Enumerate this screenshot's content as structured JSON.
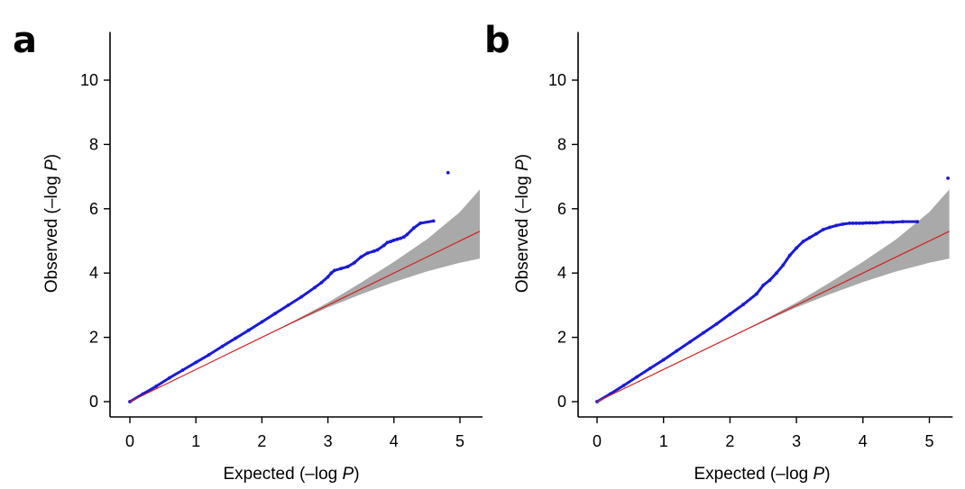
{
  "chart_data": [
    {
      "type": "scatter",
      "panel_label": "a",
      "xlabel_prefix": "Expected (–log ",
      "xlabel_var": "P",
      "xlabel_suffix": ")",
      "ylabel_prefix": "Observed (–log ",
      "ylabel_var": "P",
      "ylabel_suffix": ")",
      "xlim": [
        -0.2,
        5.35
      ],
      "ylim": [
        -0.3,
        11.5
      ],
      "xticks": [
        0,
        1,
        2,
        3,
        4,
        5
      ],
      "yticks": [
        0,
        2,
        4,
        6,
        8,
        10
      ],
      "reference_line": [
        [
          0,
          0
        ],
        [
          5.3,
          5.3
        ]
      ],
      "confidence_band": {
        "x": [
          0,
          1,
          2,
          2.5,
          3,
          3.5,
          4,
          4.5,
          5,
          5.3
        ],
        "lower": [
          0,
          1,
          2,
          2.47,
          2.93,
          3.34,
          3.72,
          4.05,
          4.32,
          4.45
        ],
        "upper": [
          0,
          1,
          2,
          2.53,
          3.08,
          3.7,
          4.35,
          5.05,
          5.9,
          6.6
        ]
      },
      "series": [
        {
          "name": "observed",
          "x": [
            0,
            0.2,
            0.4,
            0.6,
            0.8,
            1.0,
            1.2,
            1.4,
            1.6,
            1.8,
            2.0,
            2.2,
            2.4,
            2.6,
            2.8,
            2.9,
            3.0,
            3.05,
            3.1,
            3.2,
            3.3,
            3.4,
            3.5,
            3.6,
            3.7,
            3.75,
            3.85,
            3.9,
            3.95,
            4.0,
            4.05,
            4.1,
            4.15,
            4.2,
            4.3,
            4.4,
            4.6,
            4.82
          ],
          "y": [
            0,
            0.24,
            0.48,
            0.74,
            0.98,
            1.22,
            1.46,
            1.72,
            1.97,
            2.22,
            2.48,
            2.74,
            3.0,
            3.26,
            3.55,
            3.7,
            3.88,
            4.0,
            4.08,
            4.14,
            4.2,
            4.32,
            4.5,
            4.62,
            4.68,
            4.72,
            4.86,
            4.95,
            4.98,
            5.02,
            5.05,
            5.08,
            5.12,
            5.2,
            5.4,
            5.55,
            5.62,
            7.12
          ]
        }
      ]
    },
    {
      "type": "scatter",
      "panel_label": "b",
      "xlabel_prefix": "Expected (–log ",
      "xlabel_var": "P",
      "xlabel_suffix": ")",
      "ylabel_prefix": "Observed (–log ",
      "ylabel_var": "P",
      "ylabel_suffix": ")",
      "xlim": [
        -0.2,
        5.35
      ],
      "ylim": [
        -0.3,
        11.5
      ],
      "xticks": [
        0,
        1,
        2,
        3,
        4,
        5
      ],
      "yticks": [
        0,
        2,
        4,
        6,
        8,
        10
      ],
      "reference_line": [
        [
          0,
          0
        ],
        [
          5.3,
          5.3
        ]
      ],
      "confidence_band": {
        "x": [
          0,
          1,
          2,
          2.5,
          3,
          3.5,
          4,
          4.5,
          5,
          5.3
        ],
        "lower": [
          0,
          1,
          2,
          2.47,
          2.93,
          3.34,
          3.72,
          4.05,
          4.32,
          4.45
        ],
        "upper": [
          0,
          1,
          2,
          2.53,
          3.08,
          3.7,
          4.35,
          5.05,
          5.9,
          6.6
        ]
      },
      "series": [
        {
          "name": "observed",
          "x": [
            0,
            0.2,
            0.4,
            0.6,
            0.8,
            1.0,
            1.2,
            1.4,
            1.6,
            1.8,
            2.0,
            2.2,
            2.4,
            2.5,
            2.6,
            2.7,
            2.8,
            2.9,
            3.0,
            3.1,
            3.2,
            3.3,
            3.4,
            3.5,
            3.6,
            3.7,
            3.8,
            3.85,
            3.9,
            3.95,
            4.0,
            4.05,
            4.1,
            4.15,
            4.2,
            4.3,
            4.45,
            4.6,
            4.82,
            5.28
          ],
          "y": [
            0,
            0.24,
            0.5,
            0.77,
            1.04,
            1.3,
            1.58,
            1.86,
            2.14,
            2.42,
            2.72,
            3.02,
            3.35,
            3.62,
            3.78,
            4.0,
            4.25,
            4.55,
            4.78,
            4.98,
            5.1,
            5.22,
            5.35,
            5.42,
            5.48,
            5.52,
            5.55,
            5.55,
            5.55,
            5.55,
            5.55,
            5.56,
            5.56,
            5.56,
            5.56,
            5.58,
            5.58,
            5.6,
            5.6,
            6.95
          ]
        }
      ]
    }
  ]
}
